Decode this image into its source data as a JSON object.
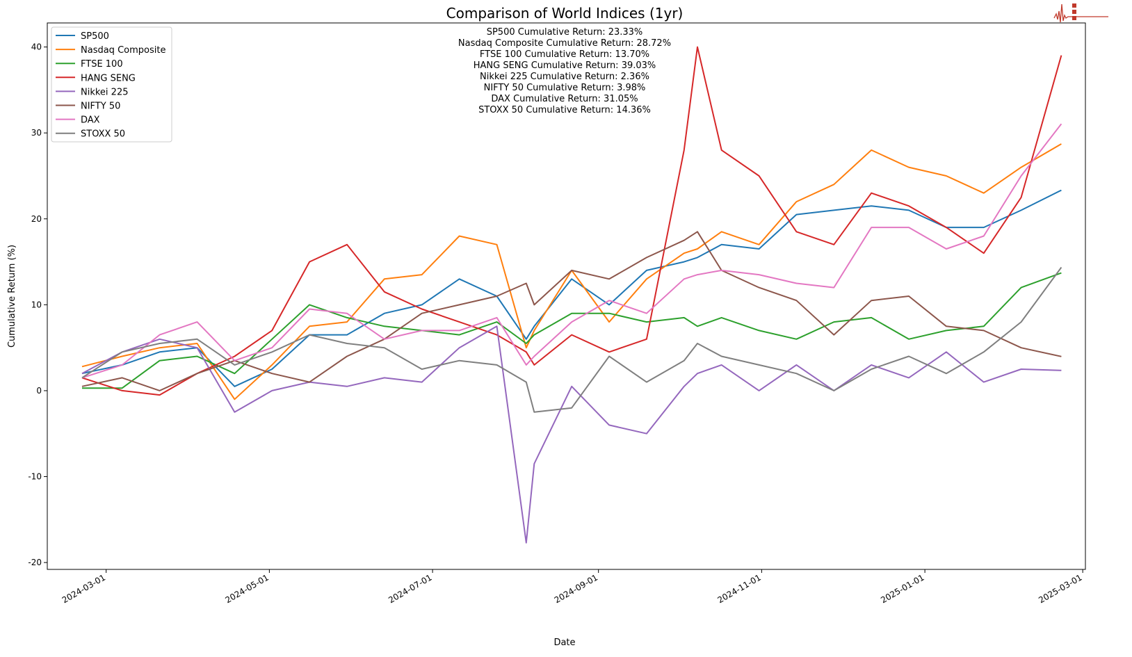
{
  "logo": {
    "text": [
      "SIGNAL",
      "2",
      "NOISE"
    ],
    "color": "#c0392b"
  },
  "chart_data": {
    "type": "line",
    "title": "Comparison of World Indices (1yr)",
    "xlabel": "Date",
    "ylabel": "Cumulative Return (%)",
    "xlim": [
      "2024-02-08",
      "2025-03-02"
    ],
    "ylim": [
      -20.8,
      42.8
    ],
    "x_ticks": [
      "2024-03-01",
      "2024-05-01",
      "2024-07-01",
      "2024-09-01",
      "2024-11-01",
      "2025-01-01",
      "2025-03-01"
    ],
    "y_ticks": [
      -20,
      -10,
      0,
      10,
      20,
      30,
      40
    ],
    "grid": false,
    "legend_position": "top-left",
    "annotations": [
      "SP500 Cumulative Return: 23.33%",
      "Nasdaq Composite Cumulative Return: 28.72%",
      "FTSE 100 Cumulative Return: 13.70%",
      "HANG SENG Cumulative Return: 39.03%",
      "Nikkei 225 Cumulative Return: 2.36%",
      "NIFTY 50 Cumulative Return: 3.98%",
      "DAX Cumulative Return: 31.05%",
      "STOXX 50 Cumulative Return: 14.36%"
    ],
    "x": [
      "2024-02-21",
      "2024-03-07",
      "2024-03-21",
      "2024-04-04",
      "2024-04-18",
      "2024-05-02",
      "2024-05-16",
      "2024-05-30",
      "2024-06-13",
      "2024-06-27",
      "2024-07-11",
      "2024-07-25",
      "2024-08-05",
      "2024-08-08",
      "2024-08-22",
      "2024-09-05",
      "2024-09-19",
      "2024-10-03",
      "2024-10-08",
      "2024-10-17",
      "2024-10-31",
      "2024-11-14",
      "2024-11-28",
      "2024-12-12",
      "2024-12-26",
      "2025-01-09",
      "2025-01-23",
      "2025-02-06",
      "2025-02-21"
    ],
    "series": [
      {
        "name": "SP500",
        "color": "#1f77b4",
        "values": [
          2,
          3,
          4.5,
          5,
          0.5,
          2.5,
          6.5,
          6.5,
          9,
          10,
          13,
          11,
          6,
          7.5,
          13,
          10,
          14,
          15,
          15.5,
          17,
          16.5,
          20.5,
          21,
          21.5,
          21,
          19,
          19,
          21,
          23.33
        ]
      },
      {
        "name": "Nasdaq Composite",
        "color": "#ff7f0e",
        "values": [
          2.8,
          4,
          5,
          5.5,
          -1,
          3,
          7.5,
          8,
          13,
          13.5,
          18,
          17,
          5,
          7,
          14,
          8,
          13,
          16,
          16.5,
          18.5,
          17,
          22,
          24,
          28,
          26,
          25,
          23,
          26,
          28.72
        ]
      },
      {
        "name": "FTSE 100",
        "color": "#2ca02c",
        "values": [
          0.3,
          0.3,
          3.5,
          4,
          2,
          6,
          10,
          8.5,
          7.5,
          7,
          6.5,
          8,
          5.5,
          6.5,
          9,
          9,
          8,
          8.5,
          7.5,
          8.5,
          7,
          6,
          8,
          8.5,
          6,
          7,
          7.5,
          12,
          13.7
        ]
      },
      {
        "name": "HANG SENG",
        "color": "#d62728",
        "values": [
          1.5,
          0,
          -0.5,
          2,
          4,
          7,
          15,
          17,
          11.5,
          9.5,
          8,
          6.5,
          4.5,
          3,
          6.5,
          4.5,
          6,
          28,
          40,
          28,
          25,
          18.5,
          17,
          23,
          21.5,
          19,
          16,
          22.5,
          39.03
        ]
      },
      {
        "name": "Nikkei 225",
        "color": "#9467bd",
        "values": [
          2,
          4.5,
          6,
          5,
          -2.5,
          0,
          1,
          0.5,
          1.5,
          1,
          5,
          7.5,
          -17.7,
          -8.5,
          0.5,
          -4,
          -5,
          0.5,
          2,
          3,
          0,
          3,
          0,
          3,
          1.5,
          4.5,
          1,
          2.5,
          2.36
        ]
      },
      {
        "name": "NIFTY 50",
        "color": "#8c564b",
        "values": [
          0.5,
          1.5,
          0,
          2,
          3.5,
          2,
          1,
          4,
          6,
          9,
          10,
          11,
          12.5,
          10,
          14,
          13,
          15.5,
          17.5,
          18.5,
          14,
          12,
          10.5,
          6.5,
          10.5,
          11,
          7.5,
          7,
          5,
          3.98
        ]
      },
      {
        "name": "DAX",
        "color": "#e377c2",
        "values": [
          1.5,
          3,
          6.5,
          8,
          3.5,
          5,
          9.5,
          9,
          6,
          7,
          7,
          8.5,
          3,
          4,
          8,
          10.5,
          9,
          13,
          13.5,
          14,
          13.5,
          12.5,
          12,
          19,
          19,
          16.5,
          18,
          25,
          31.05
        ]
      },
      {
        "name": "STOXX 50",
        "color": "#7f7f7f",
        "values": [
          1.5,
          4.5,
          5.5,
          6,
          3,
          4.5,
          6.5,
          5.5,
          5,
          2.5,
          3.5,
          3,
          1,
          -2.5,
          -2,
          4,
          1,
          3.5,
          5.5,
          4,
          3,
          2,
          0,
          2.5,
          4,
          2,
          4.5,
          8,
          14.36
        ]
      }
    ]
  }
}
